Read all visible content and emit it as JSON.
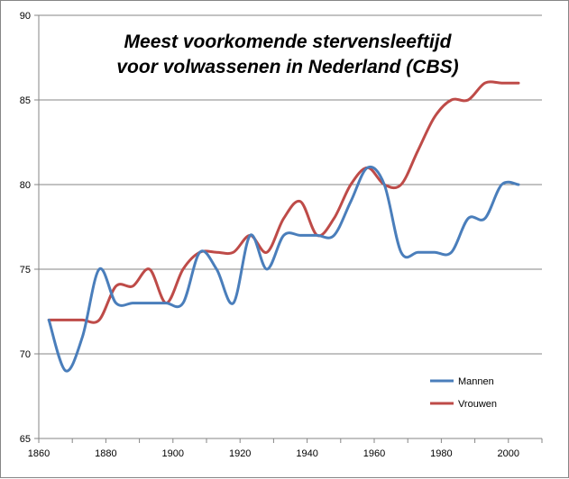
{
  "chart_data": {
    "type": "line",
    "title_lines": [
      "Meest voorkomende stervensleeftijd",
      "voor volwassenen in Nederland (CBS)"
    ],
    "xlabel": "",
    "ylabel": "",
    "xlim": [
      1860,
      2010
    ],
    "ylim": [
      65,
      90
    ],
    "x_ticks": [
      "1860",
      "1880",
      "1900",
      "1920",
      "1940",
      "1960",
      "1980",
      "2000"
    ],
    "y_ticks": [
      "65",
      "70",
      "75",
      "80",
      "85",
      "90"
    ],
    "grid": "horizontal",
    "legend_position": "bottom-right",
    "series": [
      {
        "name": "Mannen",
        "color": "#4a7ebb",
        "points": [
          [
            1863,
            72
          ],
          [
            1868,
            69
          ],
          [
            1873,
            71
          ],
          [
            1878,
            75
          ],
          [
            1883,
            73
          ],
          [
            1888,
            73
          ],
          [
            1893,
            73
          ],
          [
            1898,
            73
          ],
          [
            1903,
            73
          ],
          [
            1908,
            76
          ],
          [
            1913,
            75
          ],
          [
            1918,
            73
          ],
          [
            1923,
            77
          ],
          [
            1928,
            75
          ],
          [
            1933,
            77
          ],
          [
            1938,
            77
          ],
          [
            1943,
            77
          ],
          [
            1948,
            77
          ],
          [
            1953,
            79
          ],
          [
            1958,
            81
          ],
          [
            1963,
            80
          ],
          [
            1968,
            76
          ],
          [
            1973,
            76
          ],
          [
            1978,
            76
          ],
          [
            1983,
            76
          ],
          [
            1988,
            78
          ],
          [
            1993,
            78
          ],
          [
            1998,
            80
          ],
          [
            2003,
            80
          ]
        ]
      },
      {
        "name": "Vrouwen",
        "color": "#be4b48",
        "points": [
          [
            1863,
            72
          ],
          [
            1868,
            72
          ],
          [
            1873,
            72
          ],
          [
            1878,
            72
          ],
          [
            1883,
            74
          ],
          [
            1888,
            74
          ],
          [
            1893,
            75
          ],
          [
            1898,
            73
          ],
          [
            1903,
            75
          ],
          [
            1908,
            76
          ],
          [
            1913,
            76
          ],
          [
            1918,
            76
          ],
          [
            1923,
            77
          ],
          [
            1928,
            76
          ],
          [
            1933,
            78
          ],
          [
            1938,
            79
          ],
          [
            1943,
            77
          ],
          [
            1948,
            78
          ],
          [
            1953,
            80
          ],
          [
            1958,
            81
          ],
          [
            1963,
            80
          ],
          [
            1968,
            80
          ],
          [
            1973,
            82
          ],
          [
            1978,
            84
          ],
          [
            1983,
            85
          ],
          [
            1988,
            85
          ],
          [
            1993,
            86
          ],
          [
            1998,
            86
          ],
          [
            2003,
            86
          ]
        ]
      }
    ]
  }
}
